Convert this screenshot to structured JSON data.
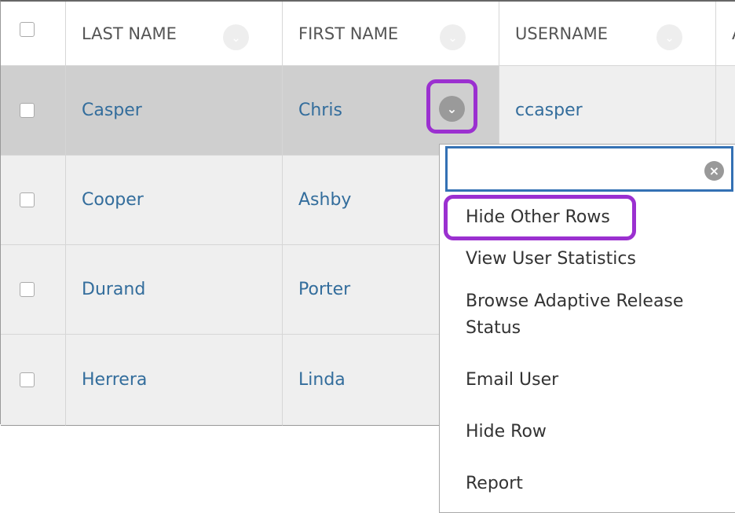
{
  "table": {
    "headers": [
      "LAST NAME",
      "FIRST NAME",
      "USERNAME",
      "A"
    ],
    "rows": [
      {
        "last": "Casper",
        "first": "Chris",
        "username": "ccasper",
        "selected": true
      },
      {
        "last": "Cooper",
        "first": "Ashby"
      },
      {
        "last": "Durand",
        "first": "Porter"
      },
      {
        "last": "Herrera",
        "first": "Linda"
      }
    ]
  },
  "menu": {
    "search_value": "",
    "items": [
      "Hide Other Rows",
      "View User Statistics",
      "Browse Adaptive Release Status",
      "Email User",
      "Hide Row",
      "Report"
    ]
  },
  "colors": {
    "link": "#336d9c",
    "highlight": "#9b30d0",
    "search_border": "#3471b4"
  }
}
